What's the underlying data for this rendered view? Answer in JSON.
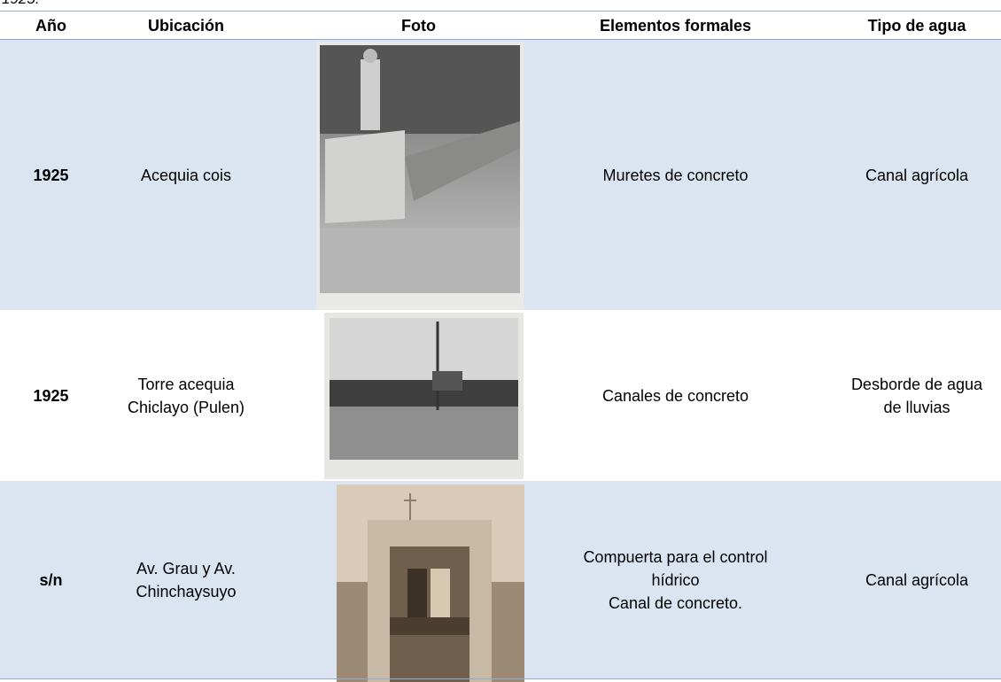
{
  "caption_fragment": "1925.",
  "table": {
    "header": [
      "Año",
      "Ubicación",
      "Foto",
      "Elementos formales",
      "Tipo de agua"
    ],
    "rows": [
      {
        "year": "1925",
        "location": "Acequia cois",
        "elements": "Muretes de concreto",
        "water_type": "Canal agrícola"
      },
      {
        "year": "1925",
        "location": "Torre acequia\nChiclayo (Pulen)",
        "elements": "Canales de concreto",
        "water_type": "Desborde de agua\nde lluvias"
      },
      {
        "year": "s/n",
        "location": "Av. Grau y Av.\nChinchaysuyo",
        "elements": "Compuerta para el control\nhídrico\nCanal de concreto.",
        "water_type": "Canal agrícola"
      }
    ]
  }
}
